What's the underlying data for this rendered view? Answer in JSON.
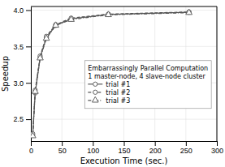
{
  "chart_data": {
    "type": "line",
    "xlabel": "Execution Time (sec.)",
    "ylabel": "Speedup",
    "x": [
      3,
      7,
      15,
      25,
      40,
      65,
      125,
      255
    ],
    "series": [
      {
        "name": "trial #1",
        "color": "#555555",
        "marker": "circle",
        "line_style": "solid",
        "values": [
          2.28,
          2.86,
          3.35,
          3.62,
          3.79,
          3.88,
          3.94,
          3.97
        ]
      },
      {
        "name": "trial #2",
        "color": "#555555",
        "marker": "circle",
        "line_style": "dashed",
        "values": [
          2.3,
          2.9,
          3.37,
          3.64,
          3.8,
          3.89,
          3.945,
          3.975
        ]
      },
      {
        "name": "trial #3",
        "color": "#555555",
        "marker": "triangle",
        "line_style": "dashdot",
        "values": [
          2.27,
          2.88,
          3.34,
          3.61,
          3.79,
          3.87,
          3.935,
          3.965
        ]
      }
    ],
    "xlim": [
      0,
      300
    ],
    "ylim": [
      2.2,
      4.05
    ],
    "xticks": [
      0,
      50,
      100,
      150,
      200,
      250,
      300
    ],
    "yticks": [
      2.5,
      {
        "value": 3,
        "label": "3.0"
      },
      3.5,
      {
        "value": 4,
        "label": "4.0"
      }
    ],
    "grid": true,
    "legend": "right",
    "legend_title": "Embarrassingly Parallel Computation\n1 master-node, 4 slave-node cluster"
  }
}
